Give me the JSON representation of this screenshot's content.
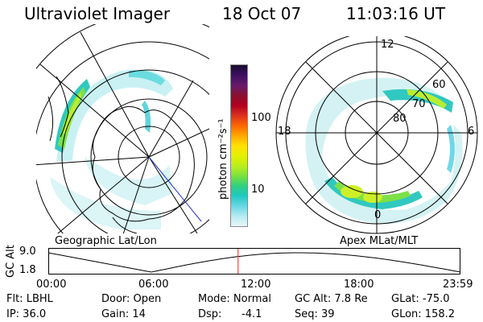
{
  "header": {
    "title": "Ultraviolet Imager",
    "date": "18 Oct 07",
    "time": "11:03:16 UT"
  },
  "colorbar": {
    "unit_label": "photon cm⁻²s⁻¹",
    "ticks": [
      "100",
      "10"
    ],
    "colors": [
      "#1a0a2e",
      "#3d1060",
      "#6a1a6a",
      "#8b1030",
      "#b00020",
      "#d83020",
      "#ff6a00",
      "#ffaa00",
      "#ffe000",
      "#e6f000",
      "#b8ee20",
      "#78e040",
      "#30d080",
      "#20c8c0",
      "#70d8e8",
      "#b8ecf0",
      "#e8f6f8"
    ]
  },
  "left_map": {
    "label": "Geographic Lat/Lon"
  },
  "right_map": {
    "label": "Apex MLat/MLT",
    "mlt_labels": {
      "top": "12",
      "left": "18",
      "right": "6",
      "bottom": "0"
    },
    "mlat_labels": [
      "60",
      "70",
      "80"
    ]
  },
  "altitude_plot": {
    "ylabel": "GC Alt",
    "yticks": [
      "9.0",
      "1.8"
    ],
    "xticks": [
      "00:00",
      "06:00",
      "12:00",
      "18:00",
      "23:59"
    ],
    "current_time_marker_hours": 11.05,
    "marker_color": "#ff2020"
  },
  "info": {
    "filter": "Flt: LBHL",
    "ip": "IP: 36.0",
    "door": "Door: Open",
    "gain": "Gain: 14",
    "mode": "Mode: Normal",
    "dsp_label": "Dsp:",
    "dsp_value": "-4.1",
    "gc_alt": "GC Alt: 7.8 Re",
    "seq": "Seq: 39",
    "glat": "GLat: -75.0",
    "glon": "GLon: 158.2"
  }
}
